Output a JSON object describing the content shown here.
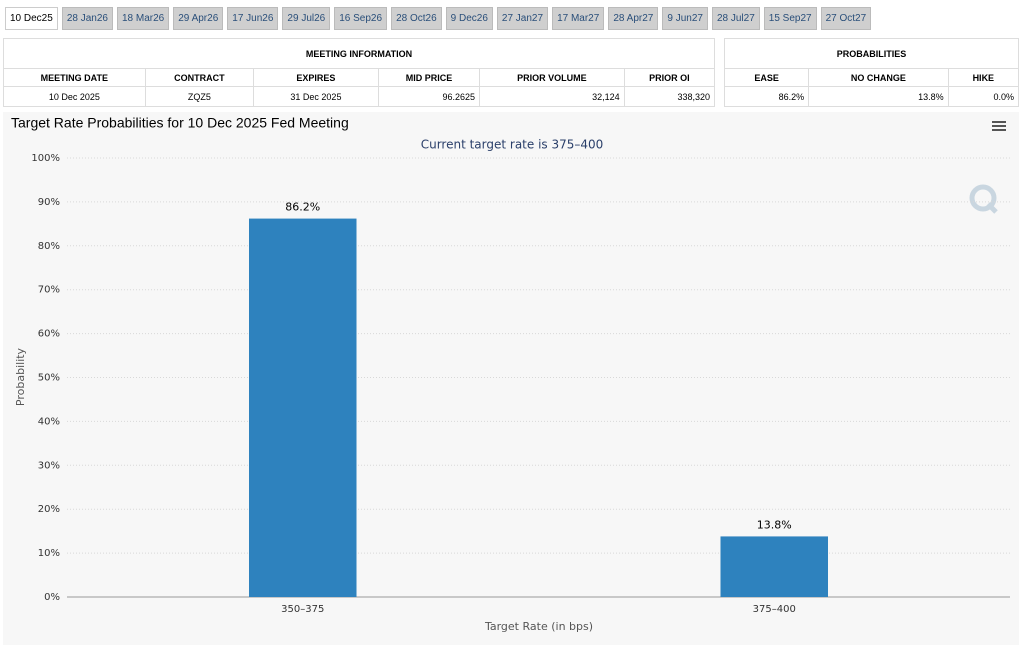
{
  "tabs": [
    "10 Dec25",
    "28 Jan26",
    "18 Mar26",
    "29 Apr26",
    "17 Jun26",
    "29 Jul26",
    "16 Sep26",
    "28 Oct26",
    "9 Dec26",
    "27 Jan27",
    "17 Mar27",
    "28 Apr27",
    "9 Jun27",
    "28 Jul27",
    "15 Sep27",
    "27 Oct27"
  ],
  "meeting_info": {
    "title": "MEETING INFORMATION",
    "headers": [
      "MEETING DATE",
      "CONTRACT",
      "EXPIRES",
      "MID PRICE",
      "PRIOR VOLUME",
      "PRIOR OI"
    ],
    "row": [
      "10 Dec 2025",
      "ZQZ5",
      "31 Dec 2025",
      "96.2625",
      "32,124",
      "338,320"
    ]
  },
  "probabilities": {
    "title": "PROBABILITIES",
    "headers": [
      "EASE",
      "NO CHANGE",
      "HIKE"
    ],
    "row": [
      "86.2%",
      "13.8%",
      "0.0%"
    ]
  },
  "chart_data": {
    "type": "bar",
    "title": "Target Rate Probabilities for 10 Dec 2025 Fed Meeting",
    "subtitle": "Current target rate is 375–400",
    "x_label": "Target Rate (in bps)",
    "y_label": "Probability",
    "categories": [
      "350–375",
      "375–400"
    ],
    "values": [
      86.2,
      13.8
    ],
    "value_labels": [
      "86.2%",
      "13.8%"
    ],
    "color": "#2e82be",
    "ylim": [
      0,
      100
    ],
    "yticks": [
      {
        "value": 0,
        "label": "0%"
      },
      {
        "value": 10,
        "label": "10%"
      },
      {
        "value": 20,
        "label": "20%"
      },
      {
        "value": 30,
        "label": "30%"
      },
      {
        "value": 40,
        "label": "40%"
      },
      {
        "value": 50,
        "label": "50%"
      },
      {
        "value": 60,
        "label": "60%"
      },
      {
        "value": 70,
        "label": "70%"
      },
      {
        "value": 80,
        "label": "80%"
      },
      {
        "value": 90,
        "label": "90%"
      },
      {
        "value": 100,
        "label": "100%"
      }
    ],
    "grid": true
  }
}
